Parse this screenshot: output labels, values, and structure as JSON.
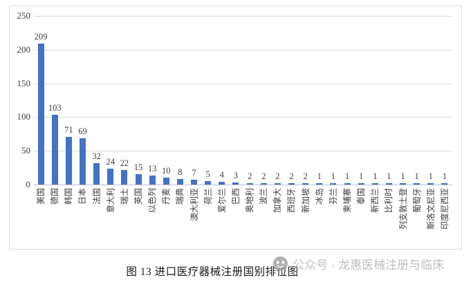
{
  "chart_data": {
    "type": "bar",
    "title": "图 13  进口医疗器械注册国别排位图",
    "categories": [
      "美国",
      "德国",
      "韩国",
      "日本",
      "法国",
      "意大利",
      "瑞士",
      "英国",
      "以色列",
      "丹麦",
      "瑞典",
      "澳大利亚",
      "荷兰",
      "爱尔兰",
      "巴西",
      "奥地利",
      "波兰",
      "加拿大",
      "西班牙",
      "新加坡",
      "冰岛",
      "芬兰",
      "柬埔寨",
      "泰国",
      "新西兰",
      "比利时",
      "列支敦士登",
      "葡萄牙",
      "斯洛文尼亚",
      "印度尼西亚"
    ],
    "values": [
      209,
      103,
      71,
      69,
      32,
      24,
      22,
      15,
      13,
      10,
      8,
      7,
      5,
      4,
      3,
      2,
      2,
      2,
      2,
      2,
      1,
      1,
      1,
      1,
      1,
      1,
      1,
      1,
      1,
      1
    ],
    "data_labels": [
      209,
      103,
      71,
      69,
      32,
      24,
      22,
      15,
      13,
      10,
      8,
      7,
      5,
      4,
      3,
      2,
      2,
      2,
      2,
      2,
      1,
      1,
      1,
      1,
      1,
      1,
      1,
      1,
      1,
      1
    ],
    "xlabel": "",
    "ylabel": "",
    "y_ticks": [
      0,
      50,
      100,
      150,
      200,
      250
    ],
    "ylim": [
      0,
      250
    ],
    "grid": "horizontal",
    "legend": "none",
    "colors": {
      "bar": "#4472C4",
      "gridline": "#d9d9d9",
      "axis_line": "#c0c0c0",
      "tick_text": "#404040",
      "frame_border": "#d9d9d9"
    }
  },
  "watermark": {
    "icon": "wechat-official-account-icon",
    "text": "公众号 · 龙惠医械注册与临床",
    "text_color": "#b5b5b5",
    "icon_color": "#a3a3a3"
  }
}
